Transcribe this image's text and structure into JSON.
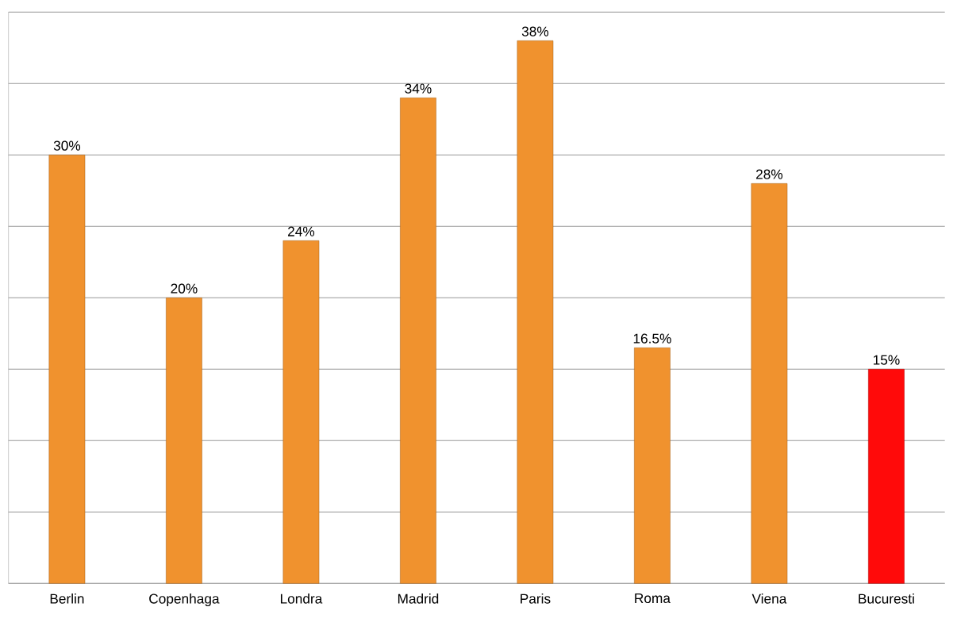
{
  "chart_data": {
    "type": "bar",
    "categories": [
      "Berlin",
      "Copenhaga",
      "Londra",
      "Madrid",
      "Paris",
      "Roma",
      "Viena",
      "Bucuresti"
    ],
    "values": [
      30,
      20,
      24,
      34,
      38,
      16.5,
      28,
      15
    ],
    "value_labels": [
      "30%",
      "20%",
      "24%",
      "34%",
      "38%",
      "16.5%",
      "28%",
      "15%"
    ],
    "colors": [
      "#f0922e",
      "#f0922e",
      "#f0922e",
      "#f0922e",
      "#f0922e",
      "#f0922e",
      "#f0922e",
      "#ff0a0a"
    ],
    "ylim": [
      0,
      40
    ],
    "yticks": [
      {
        "value": 0,
        "label": null
      },
      {
        "value": 5,
        "label": null
      },
      {
        "value": 10,
        "label": null
      },
      {
        "value": 15,
        "label": null
      },
      {
        "value": 20,
        "label": null
      },
      {
        "value": 25,
        "label": null
      },
      {
        "value": 30,
        "label": null
      },
      {
        "value": 35,
        "label": null
      },
      {
        "value": 40,
        "label": null
      }
    ],
    "tick_labels": "x",
    "grid": "y"
  }
}
